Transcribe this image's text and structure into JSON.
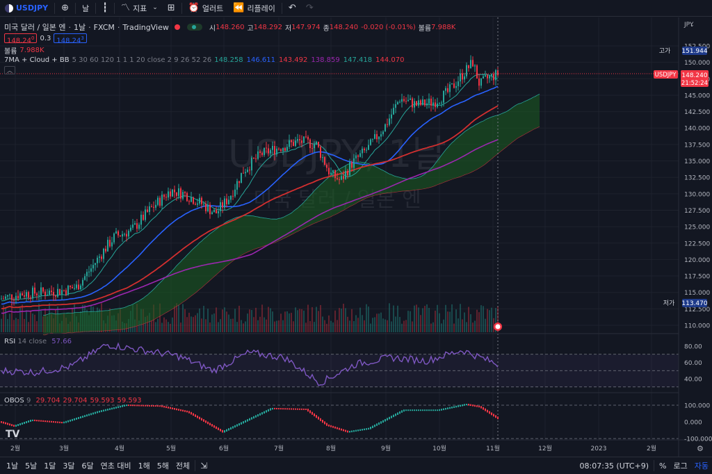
{
  "toolbar": {
    "symbol": "USDJPY",
    "interval": "날",
    "indicators_label": "지표",
    "alert_label": "얼러트",
    "replay_label": "리플레이"
  },
  "legend": {
    "instrument": "미국 달러 / 일본 엔",
    "interval": "1날",
    "exchange": "FXCM",
    "provider": "TradingView",
    "open_label": "시",
    "open": "148.260",
    "high_label": "고",
    "high": "148.292",
    "low_label": "저",
    "low": "147.974",
    "close_label": "종",
    "close": "148.240",
    "change": "-0.020 (-0.01%)",
    "volume_label": "볼륨",
    "volume": "7.988K",
    "sell": "148.24",
    "sell_sup": "0",
    "spread": "0.3",
    "buy": "148.24",
    "buy_sup": "3",
    "vol_row_label": "볼륨",
    "vol_row_value": "7.988K",
    "ind_name": "7MA + Cloud + BB",
    "ind_params": "5 30 60 120 1 1 1 20 close 2 9 26 52 26",
    "ind_values": [
      {
        "v": "148.258",
        "c": "#26a69a"
      },
      {
        "v": "146.611",
        "c": "#2962ff"
      },
      {
        "v": "143.492",
        "c": "#f23645"
      },
      {
        "v": "138.859",
        "c": "#9c27b0"
      },
      {
        "v": "147.418",
        "c": "#26a69a"
      },
      {
        "v": "144.070",
        "c": "#f23645"
      }
    ]
  },
  "rsi": {
    "label": "RSI",
    "params": "14 close",
    "value": "57.66"
  },
  "obos": {
    "label": "OBOS",
    "params": "9",
    "values": [
      {
        "v": "29.704",
        "c": "#f23645"
      },
      {
        "v": "29.704",
        "c": "#f23645"
      },
      {
        "v": "59.593",
        "c": "#f23645"
      },
      {
        "v": "59.593",
        "c": "#f23645"
      }
    ]
  },
  "price_axis": {
    "currency": "JPY",
    "labels": [
      "152.500",
      "150.000",
      "147.500",
      "145.000",
      "142.500",
      "140.000",
      "137.500",
      "135.000",
      "132.500",
      "130.000",
      "127.500",
      "125.000",
      "122.500",
      "120.000",
      "117.500",
      "115.000",
      "112.500",
      "110.000"
    ],
    "high_tag": "고가",
    "high_value": "151.944",
    "low_tag": "저가",
    "low_value": "113.470",
    "last_tag": "USDJPY",
    "last_value": "148.240",
    "countdown": "21:52:24"
  },
  "rsi_axis": [
    "80.00",
    "60.00",
    "40.00"
  ],
  "obos_axis": [
    "100.000",
    "0.000",
    "-100.000"
  ],
  "time_axis": [
    "2월",
    "3월",
    "4월",
    "5월",
    "6월",
    "7월",
    "8월",
    "9월",
    "10월",
    "11월",
    "12월",
    "2023",
    "2월"
  ],
  "watermark": {
    "symbol": "USDJPY, 1날",
    "name": "미국 달러 / 일본 엔"
  },
  "bottom": {
    "ranges": [
      "1날",
      "5날",
      "1달",
      "3달",
      "6달",
      "연초 대비",
      "1해",
      "5해",
      "전체"
    ],
    "time": "08:07:35 (UTC+9)",
    "percent": "%",
    "log": "로그",
    "auto": "자동"
  },
  "colors": {
    "bg": "#131722",
    "up": "#26a69a",
    "down": "#f23645",
    "ma_blue": "#2962ff",
    "ma_red": "#f23645",
    "ma_purple": "#9c27b0",
    "rsi": "#7e57c2",
    "cloud": "#1b5e20"
  },
  "chart_data": {
    "type": "candlestick",
    "x": [
      "2022-01-25",
      "2022-02-15",
      "2022-03-08",
      "2022-03-29",
      "2022-04-19",
      "2022-05-10",
      "2022-05-31",
      "2022-06-21",
      "2022-07-12",
      "2022-08-02",
      "2022-08-23",
      "2022-09-13",
      "2022-10-04",
      "2022-10-25",
      "2022-11-08"
    ],
    "close": [
      114.5,
      115.2,
      115.6,
      122.5,
      128.5,
      130.5,
      128.0,
      135.5,
      137.5,
      132.5,
      137.0,
      143.5,
      145.5,
      149.0,
      148.24
    ],
    "rsi_14": [
      50,
      48,
      55,
      82,
      75,
      68,
      50,
      72,
      66,
      35,
      58,
      66,
      62,
      75,
      57.66
    ],
    "ylim": [
      108,
      154
    ],
    "rsi_levels": [
      70,
      50,
      30
    ],
    "obos_ylim": [
      -120,
      120
    ]
  }
}
